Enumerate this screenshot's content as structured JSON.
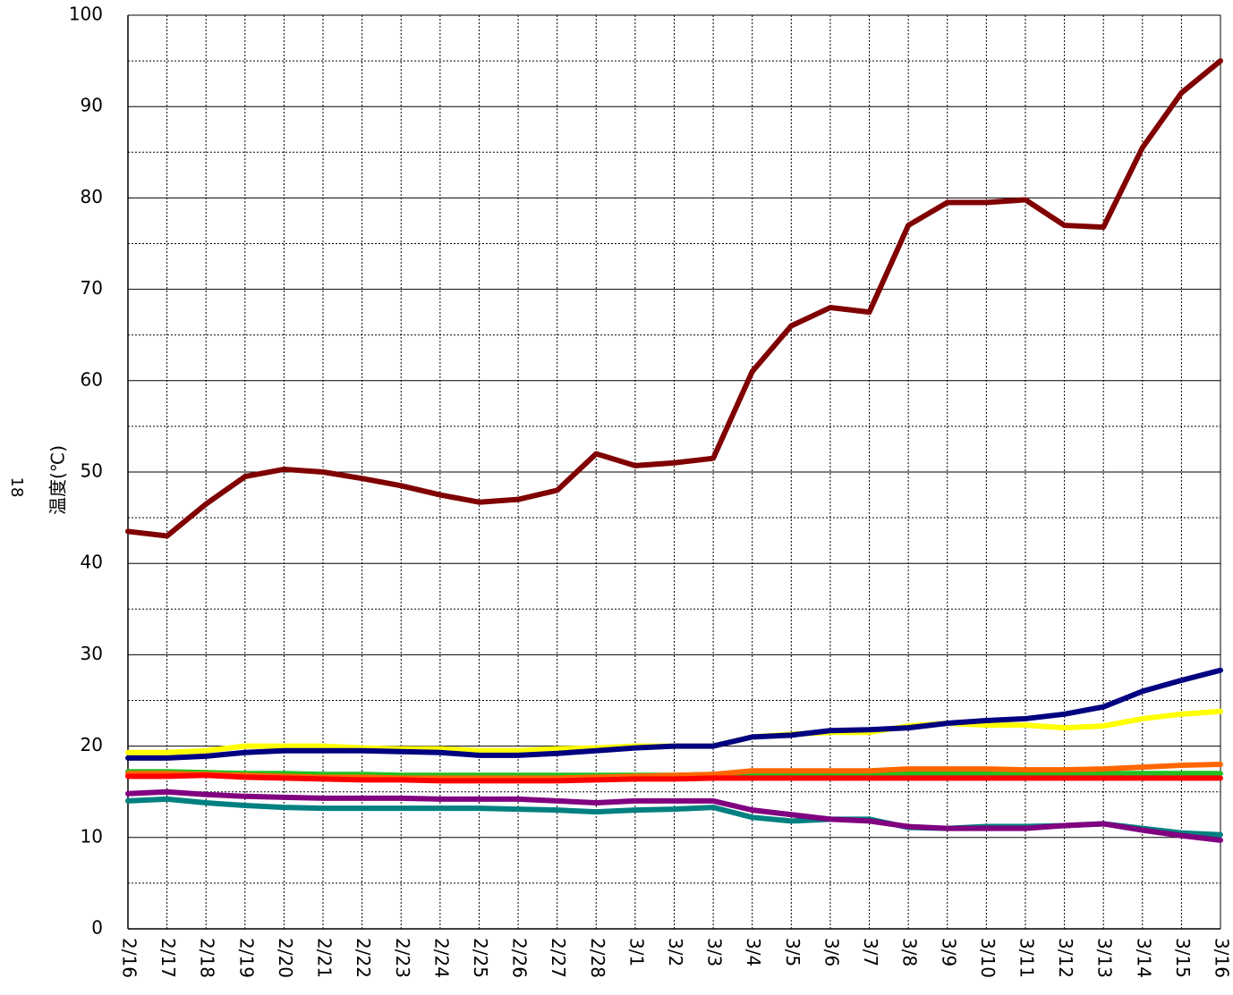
{
  "chart_data": {
    "type": "line",
    "y_label": "温度(℃)",
    "annotation": "18",
    "categories": [
      "2/16",
      "2/17",
      "2/18",
      "2/19",
      "2/20",
      "2/21",
      "2/22",
      "2/23",
      "2/24",
      "2/25",
      "2/26",
      "2/27",
      "2/28",
      "3/1",
      "3/2",
      "3/3",
      "3/4",
      "3/5",
      "3/6",
      "3/7",
      "3/8",
      "3/9",
      "3/10",
      "3/11",
      "3/12",
      "3/13",
      "3/14",
      "3/15",
      "3/16"
    ],
    "ylim": [
      0,
      100
    ],
    "yticks": [
      0,
      10,
      20,
      30,
      40,
      50,
      60,
      70,
      80,
      90,
      100
    ],
    "minor_yticks": [
      5,
      15,
      25,
      35,
      45,
      55,
      65,
      75,
      85,
      95
    ],
    "grid": true,
    "series": [
      {
        "color": "#008080",
        "values": [
          14,
          14.2,
          13.8,
          13.5,
          13.3,
          13.2,
          13.2,
          13.2,
          13.2,
          13.2,
          13.1,
          13.0,
          12.8,
          13,
          13.1,
          13.3,
          12.2,
          11.8,
          12,
          12,
          11.1,
          11,
          11.2,
          11.2,
          11.3,
          11.5,
          11,
          10.5,
          10.3
        ]
      },
      {
        "color": "#800080",
        "values": [
          14.8,
          15,
          14.7,
          14.5,
          14.4,
          14.3,
          14.3,
          14.3,
          14.2,
          14.2,
          14.2,
          14,
          13.8,
          14,
          14,
          14,
          13,
          12.5,
          12,
          11.8,
          11.2,
          11,
          11,
          11,
          11.3,
          11.5,
          10.8,
          10.2,
          9.7
        ]
      },
      {
        "color": "#22c022",
        "values": [
          17.2,
          17.2,
          17.1,
          17,
          17,
          16.9,
          16.9,
          16.8,
          16.8,
          16.8,
          16.8,
          16.8,
          16.8,
          16.8,
          16.8,
          16.9,
          16.9,
          16.9,
          16.9,
          16.9,
          17,
          17,
          17,
          17,
          17,
          17,
          17,
          17,
          17
        ]
      },
      {
        "color": "#ff6600",
        "values": [
          17,
          17,
          16.9,
          16.8,
          16.7,
          16.6,
          16.6,
          16.5,
          16.5,
          16.5,
          16.5,
          16.5,
          16.6,
          16.7,
          16.8,
          16.9,
          17.3,
          17.3,
          17.3,
          17.3,
          17.5,
          17.5,
          17.5,
          17.4,
          17.4,
          17.5,
          17.7,
          17.9,
          18
        ]
      },
      {
        "color": "#ff0000",
        "values": [
          16.7,
          16.7,
          16.8,
          16.6,
          16.5,
          16.4,
          16.3,
          16.3,
          16.2,
          16.2,
          16.2,
          16.2,
          16.3,
          16.4,
          16.4,
          16.5,
          16.5,
          16.5,
          16.5,
          16.5,
          16.5,
          16.5,
          16.5,
          16.5,
          16.5,
          16.5,
          16.5,
          16.5,
          16.5
        ]
      },
      {
        "color": "#ffff00",
        "values": [
          19.3,
          19.3,
          19.5,
          20,
          20,
          20,
          19.8,
          19.7,
          19.7,
          19.5,
          19.5,
          19.7,
          19.8,
          20,
          20,
          20,
          21,
          21.3,
          21.5,
          21.5,
          22.2,
          22.5,
          22.3,
          22.3,
          22,
          22.2,
          23,
          23.5,
          23.8
        ]
      },
      {
        "color": "#000080",
        "values": [
          18.7,
          18.7,
          18.9,
          19.3,
          19.5,
          19.5,
          19.5,
          19.4,
          19.3,
          19,
          19,
          19.2,
          19.5,
          19.8,
          20,
          20,
          21,
          21.2,
          21.7,
          21.8,
          22,
          22.5,
          22.8,
          23,
          23.5,
          24.3,
          26,
          27.2,
          28.3
        ]
      },
      {
        "color": "#800000",
        "values": [
          43.5,
          43,
          46.5,
          49.5,
          50.3,
          50,
          49.3,
          48.5,
          47.5,
          46.7,
          47,
          48,
          52,
          50.7,
          51,
          51.5,
          61,
          66,
          68,
          67.5,
          77,
          79.5,
          79.5,
          79.8,
          77,
          76.8,
          85.5,
          91.5,
          95
        ]
      }
    ]
  }
}
